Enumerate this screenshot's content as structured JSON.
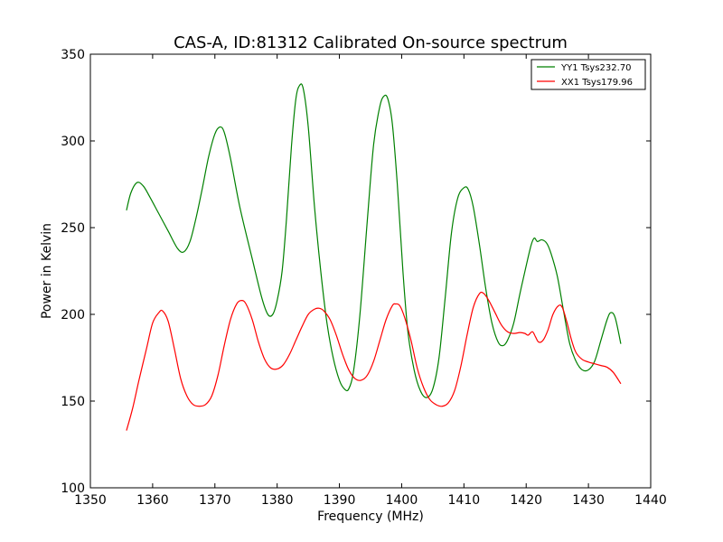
{
  "chart_data": {
    "type": "line",
    "title": "CAS-A, ID:81312 Calibrated On-source spectrum",
    "xlabel": "Frequency (MHz)",
    "ylabel": "Power in Kelvin",
    "xlim": [
      1350,
      1440
    ],
    "ylim": [
      100,
      350
    ],
    "xticks": [
      1350,
      1360,
      1370,
      1380,
      1390,
      1400,
      1410,
      1420,
      1430,
      1440
    ],
    "yticks": [
      100,
      150,
      200,
      250,
      300,
      350
    ],
    "grid": false,
    "legend_position": "top-right",
    "series": [
      {
        "name": "YY1 Tsys232.70",
        "color": "#008000",
        "points": [
          [
            1355.8,
            260
          ],
          [
            1356.5,
            270
          ],
          [
            1357.5,
            276
          ],
          [
            1358.5,
            274
          ],
          [
            1359.5,
            268
          ],
          [
            1361,
            258
          ],
          [
            1362.5,
            248
          ],
          [
            1364,
            238
          ],
          [
            1365,
            236
          ],
          [
            1366,
            242
          ],
          [
            1367,
            256
          ],
          [
            1368,
            273
          ],
          [
            1369,
            291
          ],
          [
            1370,
            304
          ],
          [
            1370.8,
            308
          ],
          [
            1371.5,
            305
          ],
          [
            1372.5,
            290
          ],
          [
            1374,
            262
          ],
          [
            1376,
            232
          ],
          [
            1377.5,
            210
          ],
          [
            1378.5,
            200
          ],
          [
            1379.3,
            200
          ],
          [
            1380,
            208
          ],
          [
            1380.8,
            225
          ],
          [
            1381.5,
            255
          ],
          [
            1382.3,
            297
          ],
          [
            1383,
            324
          ],
          [
            1383.6,
            332
          ],
          [
            1384.2,
            330
          ],
          [
            1385,
            308
          ],
          [
            1386,
            262
          ],
          [
            1387,
            225
          ],
          [
            1388,
            195
          ],
          [
            1389,
            175
          ],
          [
            1390,
            162
          ],
          [
            1390.8,
            157
          ],
          [
            1391.5,
            157
          ],
          [
            1392.3,
            168
          ],
          [
            1393.3,
            200
          ],
          [
            1394.5,
            255
          ],
          [
            1395.5,
            298
          ],
          [
            1396.5,
            320
          ],
          [
            1397.2,
            326
          ],
          [
            1397.8,
            324
          ],
          [
            1398.5,
            310
          ],
          [
            1399.3,
            275
          ],
          [
            1400.2,
            225
          ],
          [
            1401,
            190
          ],
          [
            1402,
            168
          ],
          [
            1403,
            156
          ],
          [
            1404,
            152
          ],
          [
            1405,
            157
          ],
          [
            1406,
            175
          ],
          [
            1407,
            210
          ],
          [
            1408,
            247
          ],
          [
            1409,
            267
          ],
          [
            1410,
            273
          ],
          [
            1410.7,
            272
          ],
          [
            1411.5,
            262
          ],
          [
            1412.5,
            240
          ],
          [
            1413.5,
            215
          ],
          [
            1414.5,
            195
          ],
          [
            1415.5,
            184
          ],
          [
            1416.3,
            182
          ],
          [
            1417,
            185
          ],
          [
            1418,
            195
          ],
          [
            1419,
            212
          ],
          [
            1420,
            228
          ],
          [
            1420.8,
            240
          ],
          [
            1421.3,
            244
          ],
          [
            1421.8,
            242
          ],
          [
            1422.5,
            243
          ],
          [
            1423.3,
            241
          ],
          [
            1424,
            235
          ],
          [
            1425,
            222
          ],
          [
            1426,
            202
          ],
          [
            1427,
            183
          ],
          [
            1428,
            173
          ],
          [
            1429,
            168
          ],
          [
            1430,
            168
          ],
          [
            1431,
            173
          ],
          [
            1432,
            185
          ],
          [
            1433,
            197
          ],
          [
            1433.6,
            201
          ],
          [
            1434.3,
            198
          ],
          [
            1435.2,
            183
          ]
        ]
      },
      {
        "name": "XX1 Tsys179.96",
        "color": "#ff0000",
        "points": [
          [
            1355.8,
            133
          ],
          [
            1356.8,
            146
          ],
          [
            1357.8,
            162
          ],
          [
            1359,
            180
          ],
          [
            1360,
            195
          ],
          [
            1361,
            201
          ],
          [
            1361.6,
            202
          ],
          [
            1362.5,
            196
          ],
          [
            1363.5,
            180
          ],
          [
            1364.5,
            163
          ],
          [
            1365.5,
            153
          ],
          [
            1366.5,
            148
          ],
          [
            1367.5,
            147
          ],
          [
            1368.5,
            148
          ],
          [
            1369.5,
            153
          ],
          [
            1370.5,
            165
          ],
          [
            1371.5,
            182
          ],
          [
            1372.5,
            197
          ],
          [
            1373.5,
            206
          ],
          [
            1374.3,
            208
          ],
          [
            1375,
            206
          ],
          [
            1376,
            197
          ],
          [
            1377,
            184
          ],
          [
            1378,
            174
          ],
          [
            1379,
            169
          ],
          [
            1380,
            168.5
          ],
          [
            1381,
            171
          ],
          [
            1382,
            177
          ],
          [
            1383,
            185
          ],
          [
            1384,
            193
          ],
          [
            1385,
            200
          ],
          [
            1386,
            203
          ],
          [
            1386.8,
            203.5
          ],
          [
            1387.5,
            202
          ],
          [
            1388.5,
            197
          ],
          [
            1389.5,
            188
          ],
          [
            1390.5,
            177
          ],
          [
            1391.5,
            168
          ],
          [
            1392.5,
            163
          ],
          [
            1393.5,
            162
          ],
          [
            1394.5,
            165
          ],
          [
            1395.5,
            173
          ],
          [
            1396.5,
            185
          ],
          [
            1397.5,
            197
          ],
          [
            1398.5,
            205
          ],
          [
            1399,
            206
          ],
          [
            1399.7,
            205
          ],
          [
            1400.5,
            198
          ],
          [
            1401.5,
            185
          ],
          [
            1402.5,
            169
          ],
          [
            1403.5,
            158
          ],
          [
            1404.5,
            151
          ],
          [
            1405.5,
            148
          ],
          [
            1406.5,
            147
          ],
          [
            1407.5,
            149
          ],
          [
            1408.5,
            156
          ],
          [
            1409.5,
            170
          ],
          [
            1410.5,
            188
          ],
          [
            1411.5,
            204
          ],
          [
            1412.5,
            212
          ],
          [
            1413.2,
            212
          ],
          [
            1414,
            208
          ],
          [
            1415,
            201
          ],
          [
            1416,
            194
          ],
          [
            1417,
            190
          ],
          [
            1418,
            189
          ],
          [
            1419,
            189.5
          ],
          [
            1419.8,
            189
          ],
          [
            1420.3,
            188
          ],
          [
            1421,
            190
          ],
          [
            1421.5,
            187
          ],
          [
            1422,
            184
          ],
          [
            1422.7,
            185
          ],
          [
            1423.5,
            191
          ],
          [
            1424.3,
            200
          ],
          [
            1425.2,
            205
          ],
          [
            1425.8,
            204
          ],
          [
            1426.5,
            196
          ],
          [
            1427.3,
            185
          ],
          [
            1428,
            178
          ],
          [
            1429,
            174
          ],
          [
            1430,
            172.5
          ],
          [
            1431,
            171.5
          ],
          [
            1432,
            170.5
          ],
          [
            1433,
            169.5
          ],
          [
            1434,
            166.5
          ],
          [
            1435.2,
            160
          ]
        ]
      }
    ]
  }
}
